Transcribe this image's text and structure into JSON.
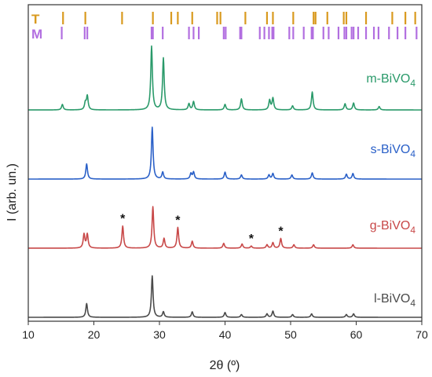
{
  "chart_data": {
    "type": "line",
    "xlabel": "2θ (º)",
    "ylabel": "I (arb. un.)",
    "xlim": [
      10,
      70
    ],
    "x_ticks": [
      "10",
      "20",
      "30",
      "40",
      "50",
      "60",
      "70"
    ],
    "grid": false,
    "reference_patterns": [
      {
        "label": "T",
        "color": "#d99a1f",
        "positions": [
          15.3,
          18.7,
          24.3,
          29.0,
          31.8,
          32.8,
          35.0,
          38.8,
          39.3,
          43.1,
          46.4,
          47.3,
          50.4,
          53.5,
          53.8,
          55.6,
          58.1,
          58.5,
          61.5,
          65.5,
          67.5,
          69.0
        ]
      },
      {
        "label": "M",
        "color": "#b26fe0",
        "positions": [
          15.1,
          18.6,
          19.0,
          28.8,
          29.0,
          30.5,
          34.5,
          35.2,
          36.0,
          39.8,
          40.1,
          42.3,
          42.5,
          45.3,
          46.0,
          46.7,
          47.2,
          47.4,
          49.8,
          50.4,
          52.0,
          53.2,
          53.4,
          55.0,
          55.8,
          57.3,
          58.2,
          58.5,
          59.3,
          59.6,
          60.3,
          61.5,
          62.7,
          63.4,
          65.0,
          66.3,
          67.5,
          69.2
        ]
      }
    ],
    "series": [
      {
        "name": "m-BiVO",
        "subscript": "4",
        "color": "#2a9a6a",
        "peaks": [
          [
            15.2,
            0.08
          ],
          [
            18.7,
            0.1
          ],
          [
            19.0,
            0.2
          ],
          [
            28.8,
            0.92
          ],
          [
            30.6,
            0.75
          ],
          [
            34.5,
            0.09
          ],
          [
            35.2,
            0.12
          ],
          [
            40.0,
            0.08
          ],
          [
            42.5,
            0.16
          ],
          [
            46.8,
            0.14
          ],
          [
            47.3,
            0.17
          ],
          [
            50.3,
            0.06
          ],
          [
            53.3,
            0.26
          ],
          [
            58.3,
            0.09
          ],
          [
            59.6,
            0.1
          ],
          [
            63.5,
            0.05
          ]
        ]
      },
      {
        "name": "s-BiVO",
        "subscript": "4",
        "color": "#2a60c8",
        "peaks": [
          [
            18.9,
            0.22
          ],
          [
            28.9,
            0.75
          ],
          [
            30.5,
            0.1
          ],
          [
            34.8,
            0.08
          ],
          [
            35.2,
            0.1
          ],
          [
            40.0,
            0.1
          ],
          [
            42.5,
            0.06
          ],
          [
            46.7,
            0.06
          ],
          [
            47.3,
            0.08
          ],
          [
            50.2,
            0.06
          ],
          [
            53.3,
            0.09
          ],
          [
            58.5,
            0.07
          ],
          [
            59.5,
            0.08
          ]
        ]
      },
      {
        "name": "g-BiVO",
        "subscript": "4",
        "color": "#c84848",
        "peaks": [
          [
            18.5,
            0.2
          ],
          [
            19.0,
            0.2
          ],
          [
            24.4,
            0.32
          ],
          [
            29.0,
            0.6
          ],
          [
            30.7,
            0.14
          ],
          [
            32.8,
            0.3
          ],
          [
            35.0,
            0.1
          ],
          [
            39.8,
            0.07
          ],
          [
            42.6,
            0.06
          ],
          [
            44.0,
            0.03
          ],
          [
            46.4,
            0.05
          ],
          [
            47.3,
            0.08
          ],
          [
            48.5,
            0.14
          ],
          [
            50.5,
            0.05
          ],
          [
            53.5,
            0.05
          ],
          [
            59.5,
            0.05
          ]
        ],
        "annotations": [
          {
            "x": 24.4,
            "text": "*"
          },
          {
            "x": 32.8,
            "text": "*"
          },
          {
            "x": 44.0,
            "text": "*"
          },
          {
            "x": 48.5,
            "text": "*"
          }
        ]
      },
      {
        "name": "l-BiVO",
        "subscript": "4",
        "color": "#4a4a4a",
        "peaks": [
          [
            18.9,
            0.2
          ],
          [
            28.9,
            0.6
          ],
          [
            30.6,
            0.08
          ],
          [
            35.0,
            0.08
          ],
          [
            40.0,
            0.07
          ],
          [
            42.5,
            0.04
          ],
          [
            46.4,
            0.05
          ],
          [
            47.3,
            0.09
          ],
          [
            50.3,
            0.04
          ],
          [
            53.2,
            0.05
          ],
          [
            58.5,
            0.04
          ],
          [
            59.6,
            0.05
          ]
        ]
      }
    ]
  }
}
